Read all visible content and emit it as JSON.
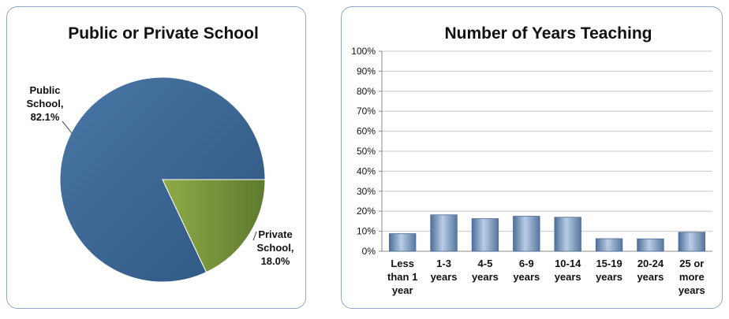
{
  "chart_data": [
    {
      "type": "pie",
      "title": "Public or Private School",
      "slices": [
        {
          "label_lines": [
            "Public",
            "School,",
            "82.1%"
          ],
          "name": "Public School",
          "value": 82.1,
          "color": "#3f6a97"
        },
        {
          "label_lines": [
            "Private",
            "School,",
            "18.0%"
          ],
          "name": "Private School",
          "value": 18.0,
          "color": "#7e9a3c"
        }
      ]
    },
    {
      "type": "bar",
      "title": "Number of Years Teaching",
      "categories": [
        [
          "Less",
          "than 1",
          "year"
        ],
        [
          "1-3",
          "years"
        ],
        [
          "4-5",
          "years"
        ],
        [
          "6-9",
          "years"
        ],
        [
          "10-14",
          "years"
        ],
        [
          "15-19",
          "years"
        ],
        [
          "20-24",
          "years"
        ],
        [
          "25 or",
          "more",
          "years"
        ]
      ],
      "values": [
        8.8,
        18.2,
        16.3,
        17.5,
        17.0,
        6.3,
        6.2,
        9.5
      ],
      "ylim": [
        0,
        100
      ],
      "yticks": [
        "0%",
        "10%",
        "20%",
        "30%",
        "40%",
        "50%",
        "60%",
        "70%",
        "80%",
        "90%",
        "100%"
      ],
      "grid": true,
      "bar_color": "#6f8fb5"
    }
  ]
}
